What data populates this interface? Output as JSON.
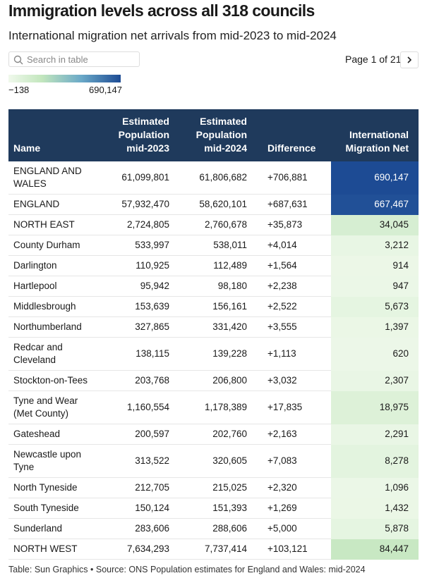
{
  "header": {
    "title": "Immigration levels across all 318 councils",
    "subtitle": "International migration net arrivals from mid-2023 to mid-2024"
  },
  "controls": {
    "search_placeholder": "Search in table",
    "pagination": "Page 1 of 21"
  },
  "legend": {
    "min": "−138",
    "max": "690,147"
  },
  "table": {
    "columns": [
      "Name",
      "Estimated Population mid-2023",
      "Estimated Population mid-2024",
      "Difference",
      "International Migration Net"
    ],
    "rows": [
      [
        "ENGLAND AND WALES",
        "61,099,801",
        "61,806,682",
        "+706,881",
        "690,147"
      ],
      [
        "ENGLAND",
        "57,932,470",
        "58,620,101",
        "+687,631",
        "667,467"
      ],
      [
        "NORTH EAST",
        "2,724,805",
        "2,760,678",
        "+35,873",
        "34,045"
      ],
      [
        "County Durham",
        "533,997",
        "538,011",
        "+4,014",
        "3,212"
      ],
      [
        "Darlington",
        "110,925",
        "112,489",
        "+1,564",
        "914"
      ],
      [
        "Hartlepool",
        "95,942",
        "98,180",
        "+2,238",
        "947"
      ],
      [
        "Middlesbrough",
        "153,639",
        "156,161",
        "+2,522",
        "5,673"
      ],
      [
        "Northumberland",
        "327,865",
        "331,420",
        "+3,555",
        "1,397"
      ],
      [
        "Redcar and Cleveland",
        "138,115",
        "139,228",
        "+1,113",
        "620"
      ],
      [
        "Stockton-on-Tees",
        "203,768",
        "206,800",
        "+3,032",
        "2,307"
      ],
      [
        "Tyne and Wear (Met County)",
        "1,160,554",
        "1,178,389",
        "+17,835",
        "18,975"
      ],
      [
        "Gateshead",
        "200,597",
        "202,760",
        "+2,163",
        "2,291"
      ],
      [
        "Newcastle upon Tyne",
        "313,522",
        "320,605",
        "+7,083",
        "8,278"
      ],
      [
        "North Tyneside",
        "212,705",
        "215,025",
        "+2,320",
        "1,096"
      ],
      [
        "South Tyneside",
        "150,124",
        "151,393",
        "+1,269",
        "1,432"
      ],
      [
        "Sunderland",
        "283,606",
        "288,606",
        "+5,000",
        "5,878"
      ],
      [
        "NORTH WEST",
        "7,634,293",
        "7,737,414",
        "+103,121",
        "84,447"
      ]
    ]
  },
  "footer": "Table: Sun Graphics • Source: ONS Population estimates for England and Wales: mid-2024"
}
